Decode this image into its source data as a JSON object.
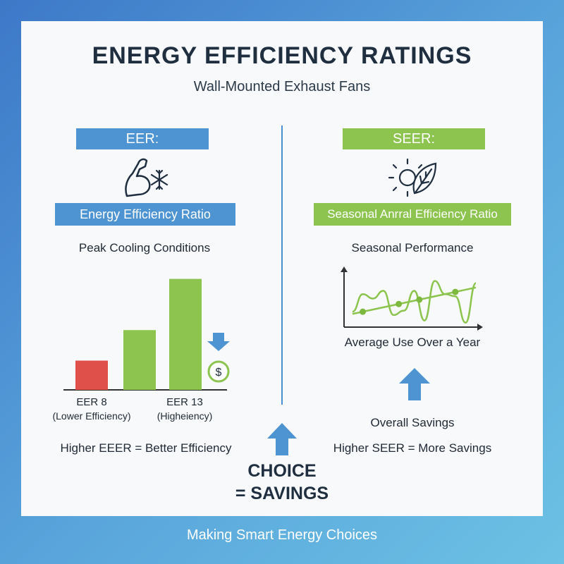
{
  "header": {
    "title": "ENERGY EFFICIENCY RATINGS",
    "subtitle": "Wall-Mounted Exhaust Fans"
  },
  "eer": {
    "heading": "EER:",
    "icon": "flexed-arm-snowflake-icon",
    "name": "Energy Efficiency Ratio",
    "condition": "Peak Cooling Conditions",
    "tagline": "Higher EEER = Better Efficiency"
  },
  "seer": {
    "heading": "SEER:",
    "icon": "sun-leaf-icon",
    "name": "Seasonal Anrral Efficiency Ratio",
    "condition": "Seasonal Performance",
    "chart_caption": "Average Use Over a Year",
    "savings_label": "Overall Savings",
    "tagline": "Higher SEER = More Savings"
  },
  "center": {
    "choice_line1": "CHOICE",
    "choice_line2": "= SAVINGS"
  },
  "footer": {
    "caption": "Making Smart Energy Choices"
  },
  "colors": {
    "blue": "#4e93d2",
    "green": "#8cc44f",
    "red": "#e0504a",
    "dark": "#1f2f40"
  },
  "chart_data": [
    {
      "type": "bar",
      "categories": [
        "EER 8",
        "",
        "EER 13"
      ],
      "category_notes": [
        "(Lower Efficiency)",
        "",
        "(Higheiency)"
      ],
      "values": [
        2.4,
        4.9,
        9.1
      ],
      "colors": [
        "#e0504a",
        "#8cc44f",
        "#8cc44f"
      ],
      "ylim": [
        0,
        10
      ],
      "xlabel": "",
      "ylabel": "",
      "annotations": [
        "down-arrow-icon",
        "dollar-coin-icon"
      ]
    },
    {
      "type": "line",
      "x": [
        0,
        1,
        2,
        3,
        4,
        5,
        6,
        7,
        8,
        9,
        10,
        11,
        12
      ],
      "series": [
        {
          "values": [
            1.4,
            3.0,
            2.6,
            3.3,
            1.1,
            1.5,
            3.3,
            0.6,
            4.2,
            3.0,
            2.8,
            0.4,
            4.0
          ]
        },
        {
          "values": [
            1.2,
            1.4,
            1.6,
            1.8,
            2.0,
            2.2,
            2.4,
            2.6,
            2.8,
            3.0,
            3.2,
            3.4,
            3.6
          ]
        }
      ],
      "markers_on_series": 1,
      "marker_x": [
        1,
        4.5,
        6.5,
        10
      ],
      "ylim": [
        0,
        5
      ],
      "xlabel": "",
      "ylabel": ""
    }
  ]
}
